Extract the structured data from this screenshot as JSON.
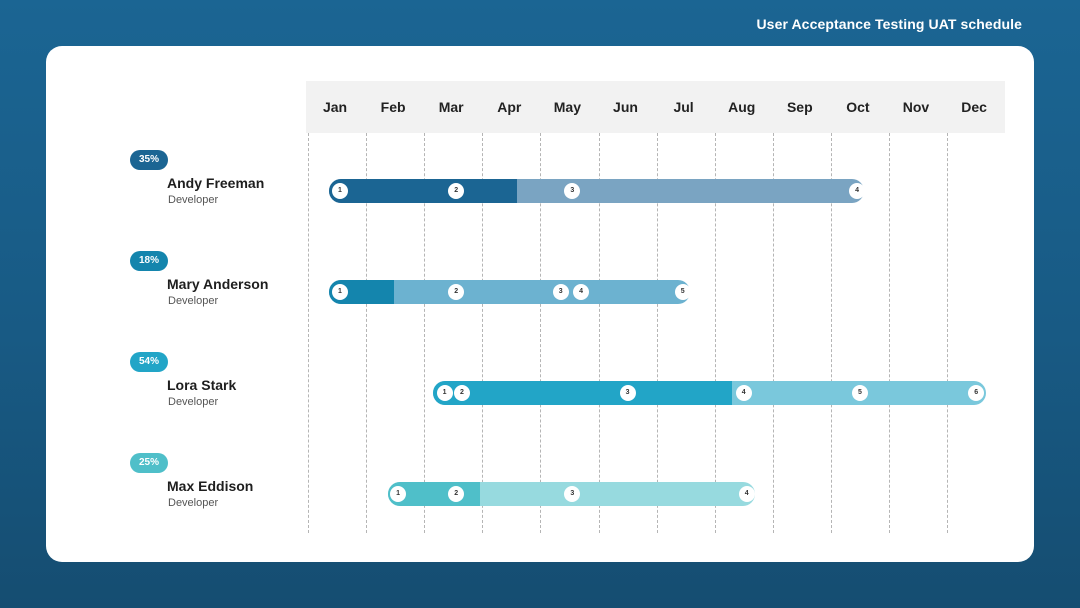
{
  "title": "User Acceptance Testing UAT schedule",
  "months": [
    "Jan",
    "Feb",
    "Mar",
    "Apr",
    "May",
    "Jun",
    "Jul",
    "Aug",
    "Sep",
    "Oct",
    "Nov",
    "Dec"
  ],
  "people": [
    {
      "name": "Andy Freeman",
      "role": "Developer",
      "progress": "35%",
      "progress_fraction": 0.35,
      "badge_color": "#1b6593",
      "dark_color": "#1b6593",
      "light_color": "#7aa4c2",
      "start_month": 0.37,
      "end_month": 9.57,
      "milestones": [
        {
          "label": "1",
          "month": 0.55
        },
        {
          "label": "2",
          "month": 2.55
        },
        {
          "label": "3",
          "month": 4.55
        },
        {
          "label": "4",
          "month": 9.45
        }
      ]
    },
    {
      "name": "Mary Anderson",
      "role": "Developer",
      "progress": "18%",
      "progress_fraction": 0.18,
      "badge_color": "#1485ad",
      "dark_color": "#1485ad",
      "light_color": "#6cb2d0",
      "start_month": 0.37,
      "end_month": 6.57,
      "milestones": [
        {
          "label": "1",
          "month": 0.55
        },
        {
          "label": "2",
          "month": 2.55
        },
        {
          "label": "3",
          "month": 4.35
        },
        {
          "label": "4",
          "month": 4.7
        },
        {
          "label": "5",
          "month": 6.45
        }
      ]
    },
    {
      "name": "Lora Stark",
      "role": "Developer",
      "progress": "54%",
      "progress_fraction": 0.54,
      "badge_color": "#22a5c7",
      "dark_color": "#22a5c7",
      "light_color": "#7ac8dc",
      "start_month": 2.15,
      "end_month": 11.67,
      "milestones": [
        {
          "label": "1",
          "month": 2.35
        },
        {
          "label": "2",
          "month": 2.65
        },
        {
          "label": "3",
          "month": 5.5
        },
        {
          "label": "4",
          "month": 7.5
        },
        {
          "label": "5",
          "month": 9.5
        },
        {
          "label": "6",
          "month": 11.5
        }
      ]
    },
    {
      "name": "Max Eddison",
      "role": "Developer",
      "progress": "25%",
      "progress_fraction": 0.25,
      "badge_color": "#4fbfc9",
      "dark_color": "#4fbfc9",
      "light_color": "#97dadf",
      "start_month": 1.37,
      "end_month": 7.7,
      "milestones": [
        {
          "label": "1",
          "month": 1.55
        },
        {
          "label": "2",
          "month": 2.55
        },
        {
          "label": "3",
          "month": 4.55
        },
        {
          "label": "4",
          "month": 7.55
        }
      ]
    }
  ]
}
